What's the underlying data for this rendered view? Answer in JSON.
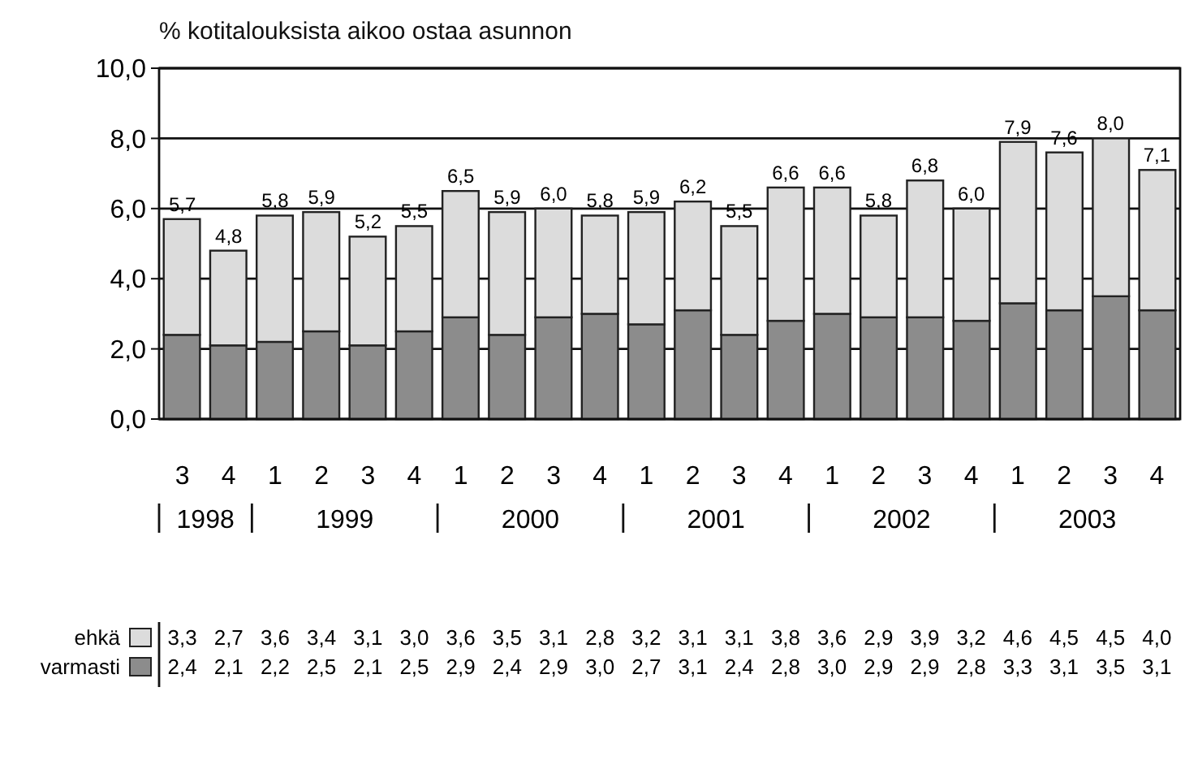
{
  "chart_data": {
    "type": "bar",
    "stacked": true,
    "title": "% kotitalouksista aikoo ostaa asunnon",
    "categories": [
      "3",
      "4",
      "1",
      "2",
      "3",
      "4",
      "1",
      "2",
      "3",
      "4",
      "1",
      "2",
      "3",
      "4",
      "1",
      "2",
      "3",
      "4",
      "1",
      "2",
      "3",
      "4"
    ],
    "annotations": [
      "1998",
      "1999",
      "2000",
      "2001",
      "2002",
      "2003"
    ],
    "series": [
      {
        "name": "varmasti",
        "color": "#8c8c8c",
        "values": [
          2.4,
          2.1,
          2.2,
          2.5,
          2.1,
          2.5,
          2.9,
          2.4,
          2.9,
          3.0,
          2.7,
          3.1,
          2.4,
          2.8,
          3.0,
          2.9,
          2.9,
          2.8,
          3.3,
          3.1,
          3.5,
          3.1
        ],
        "value_labels": [
          "2,4",
          "2,1",
          "2,2",
          "2,5",
          "2,1",
          "2,5",
          "2,9",
          "2,4",
          "2,9",
          "3,0",
          "2,7",
          "3,1",
          "2,4",
          "2,8",
          "3,0",
          "2,9",
          "2,9",
          "2,8",
          "3,3",
          "3,1",
          "3,5",
          "3,1"
        ]
      },
      {
        "name": "ehkä",
        "color": "#dcdcdc",
        "values": [
          3.3,
          2.7,
          3.6,
          3.4,
          3.1,
          3.0,
          3.6,
          3.5,
          3.1,
          2.8,
          3.2,
          3.1,
          3.1,
          3.8,
          3.6,
          2.9,
          3.9,
          3.2,
          4.6,
          4.5,
          4.5,
          4.0
        ],
        "value_labels": [
          "3,3",
          "2,7",
          "3,6",
          "3,4",
          "3,1",
          "3,0",
          "3,6",
          "3,5",
          "3,1",
          "2,8",
          "3,2",
          "3,1",
          "3,1",
          "3,8",
          "3,6",
          "2,9",
          "3,9",
          "3,2",
          "4,6",
          "4,5",
          "4,5",
          "4,0"
        ]
      }
    ],
    "totals": [
      "5,7",
      "4,8",
      "5,8",
      "5,9",
      "5,2",
      "5,5",
      "6,5",
      "5,9",
      "6,0",
      "5,8",
      "5,9",
      "6,2",
      "5,5",
      "6,6",
      "6,6",
      "5,8",
      "6,8",
      "6,0",
      "7,9",
      "7,6",
      "8,0",
      "7,1"
    ],
    "ylim": [
      0,
      10
    ],
    "yticks": [
      {
        "value": 0,
        "label": "0,0"
      },
      {
        "value": 2,
        "label": "2,0"
      },
      {
        "value": 4,
        "label": "4,0"
      },
      {
        "value": 6,
        "label": "6,0"
      },
      {
        "value": 8,
        "label": "8,0"
      },
      {
        "value": 10,
        "label": "10,0"
      }
    ],
    "grid": "y",
    "legend": "bottom"
  }
}
